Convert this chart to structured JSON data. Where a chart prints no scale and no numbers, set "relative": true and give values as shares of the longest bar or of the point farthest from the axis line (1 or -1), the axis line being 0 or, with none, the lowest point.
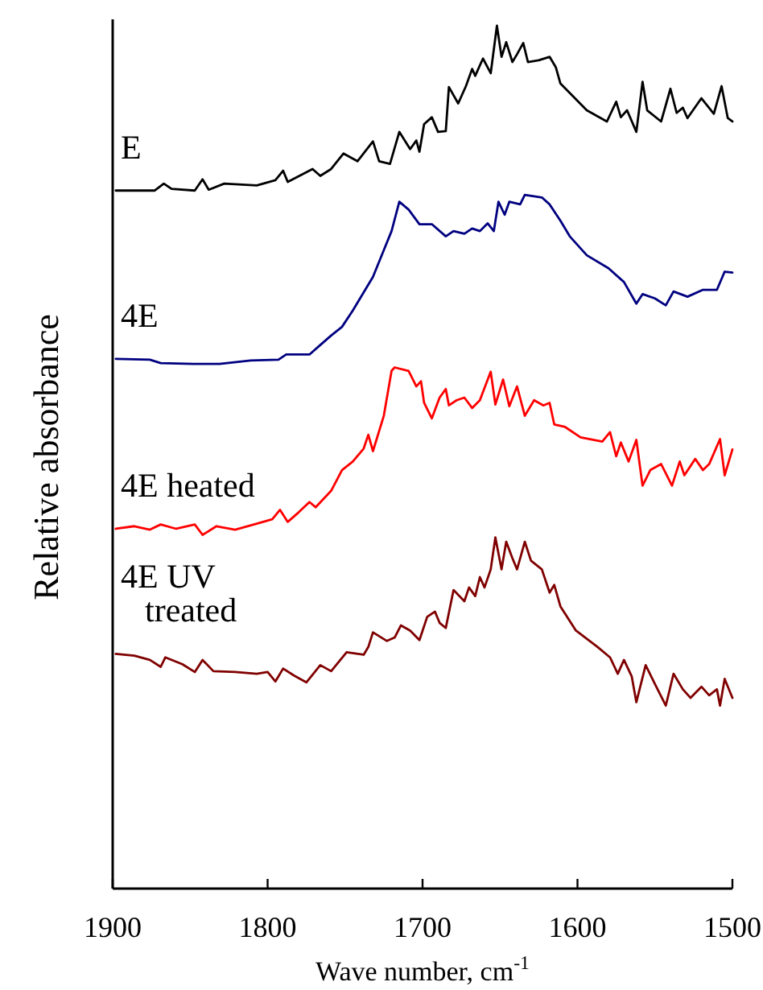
{
  "chart_data": {
    "type": "line",
    "relative": true,
    "xlabel": "Wave number, cm$^{-1}$",
    "ylabel": "Relative absorbance",
    "xlim": [
      1900,
      1500
    ],
    "xticks": [
      1900,
      1800,
      1700,
      1600,
      1500
    ],
    "grid": false,
    "marker": "none",
    "line_style": "solid",
    "series": [
      {
        "name": "E",
        "color": "#000000",
        "x": [
          1898,
          1873,
          1867,
          1862,
          1847,
          1842,
          1838,
          1828,
          1807,
          1795,
          1790,
          1787,
          1771,
          1766,
          1759,
          1751,
          1742,
          1732,
          1728,
          1721,
          1715,
          1708,
          1704,
          1702,
          1699,
          1694,
          1690,
          1685,
          1683,
          1677,
          1672,
          1668,
          1666,
          1661,
          1656,
          1652,
          1649,
          1646,
          1642,
          1639,
          1635,
          1632,
          1625,
          1618,
          1614,
          1611,
          1594,
          1581,
          1575,
          1572,
          1568,
          1562,
          1558,
          1555,
          1546,
          1540,
          1536,
          1532,
          1529,
          1520,
          1512,
          1507,
          1503,
          1500
        ],
        "values": [
          0.809,
          0.809,
          0.817,
          0.811,
          0.809,
          0.822,
          0.81,
          0.817,
          0.815,
          0.821,
          0.832,
          0.819,
          0.834,
          0.826,
          0.834,
          0.852,
          0.843,
          0.866,
          0.843,
          0.84,
          0.877,
          0.857,
          0.867,
          0.854,
          0.886,
          0.894,
          0.877,
          0.878,
          0.929,
          0.91,
          0.93,
          0.95,
          0.942,
          0.962,
          0.945,
          1.0,
          0.964,
          0.981,
          0.958,
          0.967,
          0.98,
          0.958,
          0.96,
          0.964,
          0.952,
          0.933,
          0.902,
          0.889,
          0.912,
          0.894,
          0.902,
          0.877,
          0.935,
          0.902,
          0.889,
          0.927,
          0.899,
          0.905,
          0.893,
          0.916,
          0.898,
          0.93,
          0.893,
          0.889
        ]
      },
      {
        "name": "4E",
        "color": "#000080",
        "x": [
          1898,
          1876,
          1869,
          1848,
          1831,
          1811,
          1793,
          1788,
          1773,
          1766,
          1759,
          1752,
          1745,
          1738,
          1732,
          1725,
          1720,
          1715,
          1709,
          1702,
          1694,
          1685,
          1680,
          1673,
          1668,
          1663,
          1658,
          1654,
          1651,
          1647,
          1644,
          1637,
          1634,
          1623,
          1618,
          1611,
          1605,
          1594,
          1580,
          1570,
          1562,
          1558,
          1550,
          1543,
          1538,
          1529,
          1519,
          1510,
          1505,
          1500
        ],
        "values": [
          0.614,
          0.613,
          0.609,
          0.608,
          0.608,
          0.612,
          0.613,
          0.619,
          0.619,
          0.63,
          0.641,
          0.651,
          0.67,
          0.691,
          0.709,
          0.74,
          0.762,
          0.796,
          0.787,
          0.77,
          0.77,
          0.756,
          0.762,
          0.759,
          0.765,
          0.762,
          0.771,
          0.762,
          0.796,
          0.781,
          0.796,
          0.793,
          0.804,
          0.801,
          0.793,
          0.774,
          0.756,
          0.734,
          0.719,
          0.703,
          0.678,
          0.689,
          0.684,
          0.676,
          0.692,
          0.686,
          0.694,
          0.694,
          0.715,
          0.714
        ]
      },
      {
        "name": "4E heated",
        "color": "#ff0000",
        "x": [
          1898,
          1886,
          1876,
          1869,
          1859,
          1847,
          1842,
          1833,
          1821,
          1807,
          1797,
          1792,
          1787,
          1780,
          1773,
          1769,
          1759,
          1752,
          1745,
          1738,
          1735,
          1732,
          1725,
          1720,
          1718,
          1709,
          1704,
          1701,
          1699,
          1694,
          1689,
          1685,
          1683,
          1678,
          1673,
          1668,
          1663,
          1656,
          1653,
          1648,
          1644,
          1639,
          1634,
          1628,
          1622,
          1618,
          1615,
          1608,
          1598,
          1584,
          1579,
          1575,
          1572,
          1567,
          1562,
          1558,
          1553,
          1546,
          1539,
          1534,
          1531,
          1524,
          1519,
          1515,
          1508,
          1505,
          1500
        ],
        "values": [
          0.417,
          0.42,
          0.416,
          0.422,
          0.417,
          0.422,
          0.41,
          0.42,
          0.416,
          0.423,
          0.428,
          0.439,
          0.425,
          0.436,
          0.448,
          0.442,
          0.461,
          0.485,
          0.495,
          0.51,
          0.526,
          0.507,
          0.548,
          0.6,
          0.604,
          0.6,
          0.582,
          0.588,
          0.563,
          0.545,
          0.569,
          0.579,
          0.56,
          0.566,
          0.569,
          0.557,
          0.566,
          0.599,
          0.561,
          0.59,
          0.559,
          0.582,
          0.548,
          0.566,
          0.56,
          0.563,
          0.538,
          0.535,
          0.523,
          0.518,
          0.529,
          0.501,
          0.517,
          0.495,
          0.52,
          0.467,
          0.485,
          0.492,
          0.467,
          0.495,
          0.479,
          0.498,
          0.485,
          0.492,
          0.521,
          0.479,
          0.509
        ]
      },
      {
        "name": "4E UV treated",
        "color": "#800000",
        "x": [
          1898,
          1886,
          1876,
          1869,
          1866,
          1855,
          1847,
          1842,
          1835,
          1821,
          1807,
          1800,
          1795,
          1790,
          1783,
          1775,
          1766,
          1759,
          1749,
          1738,
          1735,
          1732,
          1723,
          1718,
          1714,
          1708,
          1702,
          1697,
          1692,
          1689,
          1685,
          1680,
          1673,
          1670,
          1666,
          1663,
          1660,
          1656,
          1653,
          1649,
          1646,
          1642,
          1639,
          1634,
          1630,
          1623,
          1618,
          1615,
          1611,
          1601,
          1587,
          1579,
          1574,
          1570,
          1565,
          1562,
          1556,
          1550,
          1543,
          1538,
          1532,
          1527,
          1520,
          1515,
          1510,
          1508,
          1505,
          1500
        ],
        "values": [
          0.272,
          0.27,
          0.265,
          0.257,
          0.268,
          0.26,
          0.251,
          0.265,
          0.252,
          0.251,
          0.249,
          0.251,
          0.24,
          0.255,
          0.247,
          0.239,
          0.259,
          0.252,
          0.274,
          0.271,
          0.28,
          0.297,
          0.287,
          0.291,
          0.305,
          0.299,
          0.288,
          0.315,
          0.321,
          0.308,
          0.302,
          0.346,
          0.333,
          0.349,
          0.339,
          0.361,
          0.349,
          0.37,
          0.407,
          0.37,
          0.402,
          0.383,
          0.37,
          0.402,
          0.38,
          0.37,
          0.343,
          0.352,
          0.327,
          0.299,
          0.28,
          0.268,
          0.249,
          0.265,
          0.246,
          0.216,
          0.259,
          0.237,
          0.212,
          0.249,
          0.231,
          0.221,
          0.234,
          0.224,
          0.231,
          0.212,
          0.243,
          0.221
        ]
      }
    ]
  }
}
